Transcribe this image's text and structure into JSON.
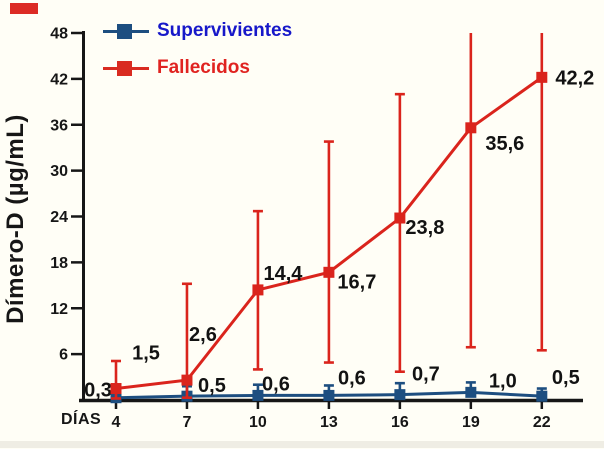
{
  "page": {
    "background": "#fffef6"
  },
  "decor": {
    "corner_box_color": "#dc2b25"
  },
  "legend": {
    "items": [
      {
        "label": "Supervivientes",
        "marker_color": "#1d4e80",
        "text_color": "#1718c9"
      },
      {
        "label": "Fallecidos",
        "marker_color": "#d92b20",
        "text_color": "#e02320"
      }
    ]
  },
  "chart_data": {
    "type": "line",
    "title": "",
    "xlabel": "DÍAS",
    "ylabel": "Dímero-D (µg/mL)",
    "x": [
      4,
      7,
      10,
      13,
      16,
      19,
      22
    ],
    "ylim": [
      0,
      48
    ],
    "yticks": [
      6,
      12,
      18,
      24,
      30,
      36,
      42,
      48
    ],
    "grid": false,
    "legend_position": "top-left-inside",
    "axis_color": "#161616",
    "label_color": "#121212",
    "series": [
      {
        "name": "Supervivientes",
        "color": "#1d4e80",
        "marker": "square",
        "values": [
          0.3,
          0.5,
          0.6,
          0.6,
          0.7,
          1.0,
          0.5
        ],
        "labels": [
          "0,3",
          "0,5",
          "0,6",
          "0,6",
          "0,7",
          "1,0",
          "0,5"
        ],
        "err_top": [
          2.0,
          1.8,
          2.0,
          1.9,
          2.2,
          2.3,
          1.5
        ],
        "err_bottom": [
          0.3,
          0.5,
          0.6,
          0.6,
          0.7,
          1.0,
          0.5
        ],
        "label_offsets": [
          [
            -18,
            -8
          ],
          [
            25,
            -11
          ],
          [
            18,
            -12
          ],
          [
            23,
            -18
          ],
          [
            26,
            -21
          ],
          [
            32,
            -12
          ],
          [
            24,
            -19
          ]
        ]
      },
      {
        "name": "Fallecidos",
        "color": "#da241c",
        "marker": "square",
        "values": [
          1.5,
          2.6,
          14.4,
          16.7,
          23.8,
          35.6,
          42.2
        ],
        "labels": [
          "1,5",
          "2,6",
          "14,4",
          "16,7",
          "23,8",
          "35,6",
          "42,2"
        ],
        "err_top": [
          5.1,
          15.2,
          24.7,
          33.8,
          40.0,
          48.0,
          48.0
        ],
        "err_bottom": [
          0.2,
          0.3,
          4.0,
          4.9,
          3.7,
          6.9,
          6.5
        ],
        "label_offsets": [
          [
            30,
            -36
          ],
          [
            16,
            -46
          ],
          [
            25,
            -17
          ],
          [
            28,
            9
          ],
          [
            25,
            9
          ],
          [
            34,
            15
          ],
          [
            33,
            0
          ]
        ]
      }
    ]
  }
}
